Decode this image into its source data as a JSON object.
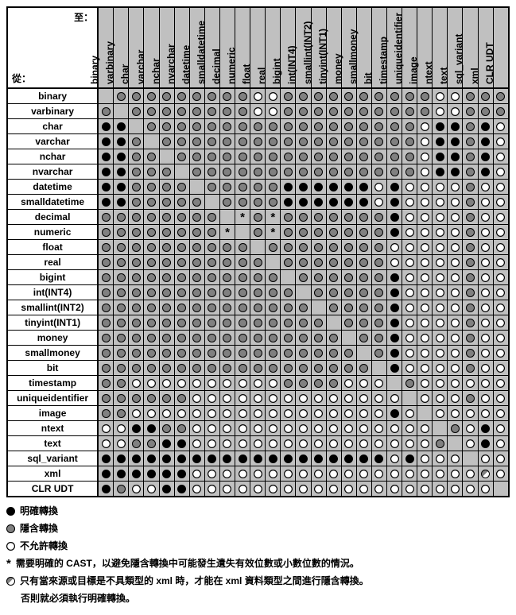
{
  "labels": {
    "to": "至：",
    "from": "從："
  },
  "types": [
    "binary",
    "varbinary",
    "char",
    "varchar",
    "nchar",
    "nvarchar",
    "datetime",
    "smalldatetime",
    "decimal",
    "numeric",
    "float",
    "real",
    "bigint",
    "int(INT4)",
    "smallint(INT2)",
    "tinyint(INT1)",
    "money",
    "smallmoney",
    "bit",
    "timestamp",
    "uniqueidentifier",
    "image",
    "ntext",
    "text",
    "sql_variant",
    "xml",
    "CLR UDT"
  ],
  "symbols": {
    "e": {
      "class": "circ-e",
      "title": "明確轉換"
    },
    "i": {
      "class": "circ-i",
      "title": "隱含轉換"
    },
    "n": {
      "class": "circ-n",
      "title": "不允許轉換"
    },
    "s": {
      "class": "star",
      "title": "需要明確的 CAST"
    },
    "h": {
      "class": "half",
      "title": "xml 條件轉換"
    },
    "": {
      "class": "",
      "title": ""
    }
  },
  "matrix": [
    [
      "",
      "i",
      "i",
      "i",
      "i",
      "i",
      "i",
      "i",
      "i",
      "i",
      "n",
      "n",
      "i",
      "i",
      "i",
      "i",
      "i",
      "i",
      "i",
      "i",
      "i",
      "i",
      "n",
      "n",
      "i",
      "i",
      "i"
    ],
    [
      "i",
      "",
      "i",
      "i",
      "i",
      "i",
      "i",
      "i",
      "i",
      "i",
      "n",
      "n",
      "i",
      "i",
      "i",
      "i",
      "i",
      "i",
      "i",
      "i",
      "i",
      "i",
      "n",
      "n",
      "i",
      "i",
      "i"
    ],
    [
      "e",
      "e",
      "",
      "i",
      "i",
      "i",
      "i",
      "i",
      "i",
      "i",
      "i",
      "i",
      "i",
      "i",
      "i",
      "i",
      "i",
      "i",
      "i",
      "i",
      "i",
      "n",
      "e",
      "e",
      "i",
      "e",
      "n"
    ],
    [
      "e",
      "e",
      "i",
      "",
      "i",
      "i",
      "i",
      "i",
      "i",
      "i",
      "i",
      "i",
      "i",
      "i",
      "i",
      "i",
      "i",
      "i",
      "i",
      "i",
      "i",
      "n",
      "e",
      "e",
      "i",
      "e",
      "n"
    ],
    [
      "e",
      "e",
      "i",
      "i",
      "",
      "i",
      "i",
      "i",
      "i",
      "i",
      "i",
      "i",
      "i",
      "i",
      "i",
      "i",
      "i",
      "i",
      "i",
      "i",
      "i",
      "n",
      "e",
      "e",
      "i",
      "e",
      "n"
    ],
    [
      "e",
      "e",
      "i",
      "i",
      "i",
      "",
      "i",
      "i",
      "i",
      "i",
      "i",
      "i",
      "i",
      "i",
      "i",
      "i",
      "i",
      "i",
      "i",
      "i",
      "i",
      "n",
      "e",
      "e",
      "i",
      "e",
      "n"
    ],
    [
      "e",
      "e",
      "i",
      "i",
      "i",
      "i",
      "",
      "i",
      "i",
      "i",
      "i",
      "i",
      "e",
      "e",
      "e",
      "e",
      "e",
      "e",
      "n",
      "e",
      "n",
      "n",
      "n",
      "n",
      "i",
      "n",
      "n"
    ],
    [
      "e",
      "e",
      "i",
      "i",
      "i",
      "i",
      "i",
      "",
      "i",
      "i",
      "i",
      "i",
      "e",
      "e",
      "e",
      "e",
      "e",
      "e",
      "n",
      "e",
      "n",
      "n",
      "n",
      "n",
      "i",
      "n",
      "n"
    ],
    [
      "i",
      "i",
      "i",
      "i",
      "i",
      "i",
      "i",
      "i",
      "",
      "s",
      "i",
      "s",
      "i",
      "i",
      "i",
      "i",
      "i",
      "i",
      "i",
      "e",
      "n",
      "n",
      "n",
      "n",
      "i",
      "n",
      "n"
    ],
    [
      "i",
      "i",
      "i",
      "i",
      "i",
      "i",
      "i",
      "i",
      "s",
      "",
      "i",
      "s",
      "i",
      "i",
      "i",
      "i",
      "i",
      "i",
      "i",
      "e",
      "n",
      "n",
      "n",
      "n",
      "i",
      "n",
      "n"
    ],
    [
      "i",
      "i",
      "i",
      "i",
      "i",
      "i",
      "i",
      "i",
      "i",
      "i",
      "",
      "i",
      "i",
      "i",
      "i",
      "i",
      "i",
      "i",
      "i",
      "n",
      "n",
      "n",
      "n",
      "n",
      "i",
      "n",
      "n"
    ],
    [
      "i",
      "i",
      "i",
      "i",
      "i",
      "i",
      "i",
      "i",
      "i",
      "i",
      "i",
      "",
      "i",
      "i",
      "i",
      "i",
      "i",
      "i",
      "i",
      "n",
      "n",
      "n",
      "n",
      "n",
      "i",
      "n",
      "n"
    ],
    [
      "i",
      "i",
      "i",
      "i",
      "i",
      "i",
      "i",
      "i",
      "i",
      "i",
      "i",
      "i",
      "",
      "i",
      "i",
      "i",
      "i",
      "i",
      "i",
      "e",
      "n",
      "n",
      "n",
      "n",
      "i",
      "n",
      "n"
    ],
    [
      "i",
      "i",
      "i",
      "i",
      "i",
      "i",
      "i",
      "i",
      "i",
      "i",
      "i",
      "i",
      "i",
      "",
      "i",
      "i",
      "i",
      "i",
      "i",
      "e",
      "n",
      "n",
      "n",
      "n",
      "i",
      "n",
      "n"
    ],
    [
      "i",
      "i",
      "i",
      "i",
      "i",
      "i",
      "i",
      "i",
      "i",
      "i",
      "i",
      "i",
      "i",
      "i",
      "",
      "i",
      "i",
      "i",
      "i",
      "e",
      "n",
      "n",
      "n",
      "n",
      "i",
      "n",
      "n"
    ],
    [
      "i",
      "i",
      "i",
      "i",
      "i",
      "i",
      "i",
      "i",
      "i",
      "i",
      "i",
      "i",
      "i",
      "i",
      "i",
      "",
      "i",
      "i",
      "i",
      "e",
      "n",
      "n",
      "n",
      "n",
      "i",
      "n",
      "n"
    ],
    [
      "i",
      "i",
      "i",
      "i",
      "i",
      "i",
      "i",
      "i",
      "i",
      "i",
      "i",
      "i",
      "i",
      "i",
      "i",
      "i",
      "",
      "i",
      "i",
      "e",
      "n",
      "n",
      "n",
      "n",
      "i",
      "n",
      "n"
    ],
    [
      "i",
      "i",
      "i",
      "i",
      "i",
      "i",
      "i",
      "i",
      "i",
      "i",
      "i",
      "i",
      "i",
      "i",
      "i",
      "i",
      "i",
      "",
      "i",
      "e",
      "n",
      "n",
      "n",
      "n",
      "i",
      "n",
      "n"
    ],
    [
      "i",
      "i",
      "i",
      "i",
      "i",
      "i",
      "i",
      "i",
      "i",
      "i",
      "i",
      "i",
      "i",
      "i",
      "i",
      "i",
      "i",
      "i",
      "",
      "e",
      "n",
      "n",
      "n",
      "n",
      "i",
      "n",
      "n"
    ],
    [
      "i",
      "i",
      "n",
      "n",
      "n",
      "n",
      "n",
      "n",
      "n",
      "n",
      "n",
      "n",
      "i",
      "i",
      "i",
      "i",
      "n",
      "n",
      "n",
      "",
      "i",
      "n",
      "n",
      "n",
      "n",
      "n",
      "n"
    ],
    [
      "i",
      "i",
      "i",
      "i",
      "i",
      "i",
      "n",
      "n",
      "n",
      "n",
      "n",
      "n",
      "n",
      "n",
      "n",
      "n",
      "n",
      "n",
      "n",
      "n",
      "",
      "n",
      "n",
      "n",
      "i",
      "n",
      "n"
    ],
    [
      "i",
      "i",
      "n",
      "n",
      "n",
      "n",
      "n",
      "n",
      "n",
      "n",
      "n",
      "n",
      "n",
      "n",
      "n",
      "n",
      "n",
      "n",
      "n",
      "e",
      "n",
      "",
      "n",
      "n",
      "n",
      "n",
      "n"
    ],
    [
      "n",
      "n",
      "e",
      "e",
      "i",
      "i",
      "n",
      "n",
      "n",
      "n",
      "n",
      "n",
      "n",
      "n",
      "n",
      "n",
      "n",
      "n",
      "n",
      "n",
      "n",
      "n",
      "",
      "i",
      "n",
      "e",
      "n"
    ],
    [
      "n",
      "n",
      "i",
      "i",
      "e",
      "e",
      "n",
      "n",
      "n",
      "n",
      "n",
      "n",
      "n",
      "n",
      "n",
      "n",
      "n",
      "n",
      "n",
      "n",
      "n",
      "n",
      "i",
      "",
      "n",
      "e",
      "n"
    ],
    [
      "e",
      "e",
      "e",
      "e",
      "e",
      "e",
      "e",
      "e",
      "e",
      "e",
      "e",
      "e",
      "e",
      "e",
      "e",
      "e",
      "e",
      "e",
      "e",
      "n",
      "e",
      "n",
      "n",
      "n",
      "",
      "n",
      "n"
    ],
    [
      "e",
      "e",
      "e",
      "e",
      "e",
      "e",
      "n",
      "n",
      "n",
      "n",
      "n",
      "n",
      "n",
      "n",
      "n",
      "n",
      "n",
      "n",
      "n",
      "n",
      "n",
      "n",
      "n",
      "n",
      "n",
      "h",
      "n"
    ],
    [
      "e",
      "i",
      "n",
      "n",
      "e",
      "e",
      "n",
      "n",
      "n",
      "n",
      "n",
      "n",
      "n",
      "n",
      "n",
      "n",
      "n",
      "n",
      "n",
      "n",
      "n",
      "n",
      "n",
      "n",
      "n",
      "n",
      ""
    ]
  ],
  "legend": [
    {
      "sym": "e",
      "text": "明確轉換"
    },
    {
      "sym": "i",
      "text": "隱含轉換"
    },
    {
      "sym": "n",
      "text": "不允許轉換"
    },
    {
      "sym": "s",
      "text": "需要明確的 CAST，以避免隱含轉換中可能發生遺失有效位數或小數位數的情況。"
    },
    {
      "sym": "h",
      "text": "只有當來源或目標是不具類型的 xml 時，才能在 xml 資料類型之間進行隱含轉換。"
    }
  ],
  "legend_cont": "否則就必須執行明確轉換。",
  "colors": {
    "grid_bg": "#c0c0c0",
    "explicit": "#000000",
    "implicit": "#808080",
    "not_allowed": "#ffffff",
    "border": "#000000"
  }
}
